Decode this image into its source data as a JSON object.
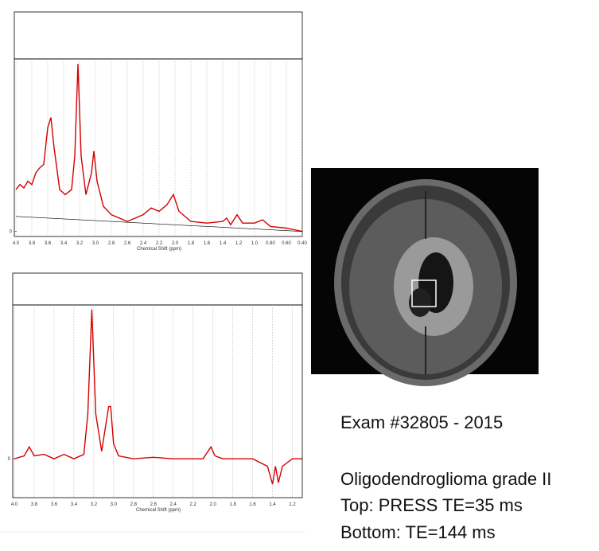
{
  "chart_data": [
    {
      "type": "line",
      "xlabel": "Chemical Shift (ppm)",
      "xlim": [
        4.0,
        0.4
      ],
      "ylim": [
        -0.03,
        1.03
      ],
      "xticks": [
        {
          "value": 4,
          "label": "4.0"
        },
        3.8,
        3.6,
        3.4,
        3.2,
        {
          "value": 3,
          "label": "3.0"
        },
        2.8,
        2.6,
        2.4,
        2.2,
        {
          "value": 2,
          "label": "2.0"
        },
        1.8,
        1.6,
        1.4,
        1.2,
        {
          "value": 1,
          "label": "1.0"
        },
        {
          "value": 0.8,
          "label": "0.80"
        },
        {
          "value": 0.6,
          "label": "0.60"
        },
        {
          "value": 0.4,
          "label": "0.40"
        }
      ],
      "yticks": [
        0
      ],
      "series": [
        {
          "color": "#d40000",
          "x": [
            4.0,
            3.95,
            3.9,
            3.85,
            3.8,
            3.75,
            3.7,
            3.65,
            3.6,
            3.56,
            3.52,
            3.45,
            3.38,
            3.3,
            3.26,
            3.22,
            3.18,
            3.12,
            3.05,
            3.02,
            2.98,
            2.9,
            2.8,
            2.6,
            2.4,
            2.3,
            2.2,
            2.1,
            2.02,
            1.95,
            1.8,
            1.6,
            1.4,
            1.35,
            1.3,
            1.22,
            1.15,
            1.0,
            0.9,
            0.8,
            0.6,
            0.4
          ],
          "values": [
            0.25,
            0.28,
            0.26,
            0.3,
            0.28,
            0.35,
            0.38,
            0.4,
            0.62,
            0.68,
            0.5,
            0.25,
            0.22,
            0.25,
            0.45,
            1.0,
            0.45,
            0.22,
            0.35,
            0.48,
            0.3,
            0.15,
            0.1,
            0.06,
            0.1,
            0.14,
            0.12,
            0.16,
            0.22,
            0.12,
            0.06,
            0.05,
            0.06,
            0.08,
            0.04,
            0.1,
            0.05,
            0.05,
            0.07,
            0.03,
            0.02,
            0.0
          ]
        },
        {
          "color": "#000000",
          "x": [
            4.0,
            0.4
          ],
          "values": [
            0.09,
            0.0
          ]
        }
      ]
    },
    {
      "type": "line",
      "xlabel": "Chemical Shift (ppm)",
      "xlim": [
        4.0,
        1.1
      ],
      "ylim": [
        -0.26,
        1.03
      ],
      "xticks": [
        {
          "value": 4,
          "label": "4.0"
        },
        3.8,
        3.6,
        3.4,
        3.2,
        {
          "value": 3,
          "label": "3.0"
        },
        2.8,
        2.6,
        2.4,
        2.2,
        {
          "value": 2,
          "label": "2.0"
        },
        1.8,
        1.6,
        1.4,
        1.2
      ],
      "yticks": [
        0
      ],
      "series": [
        {
          "color": "#d40000",
          "x": [
            4.0,
            3.9,
            3.85,
            3.8,
            3.7,
            3.6,
            3.5,
            3.4,
            3.3,
            3.26,
            3.22,
            3.18,
            3.12,
            3.05,
            3.03,
            3.0,
            2.95,
            2.8,
            2.6,
            2.4,
            2.1,
            2.02,
            1.98,
            1.9,
            1.6,
            1.45,
            1.4,
            1.37,
            1.34,
            1.3,
            1.2,
            1.1
          ],
          "values": [
            0.0,
            0.02,
            0.08,
            0.02,
            0.03,
            0.0,
            0.03,
            0.0,
            0.03,
            0.3,
            1.0,
            0.3,
            0.05,
            0.35,
            0.35,
            0.1,
            0.02,
            0.0,
            0.01,
            0.0,
            0.0,
            0.08,
            0.02,
            0.0,
            0.0,
            -0.05,
            -0.17,
            -0.05,
            -0.16,
            -0.05,
            0.0,
            0.0
          ]
        }
      ]
    }
  ],
  "caption": {
    "exam": "Exam #32805 - 2015",
    "diagnosis": "Oligodendroglioma grade II",
    "top": "Top: PRESS TE=35 ms",
    "bottom": "Bottom: TE=144 ms"
  }
}
